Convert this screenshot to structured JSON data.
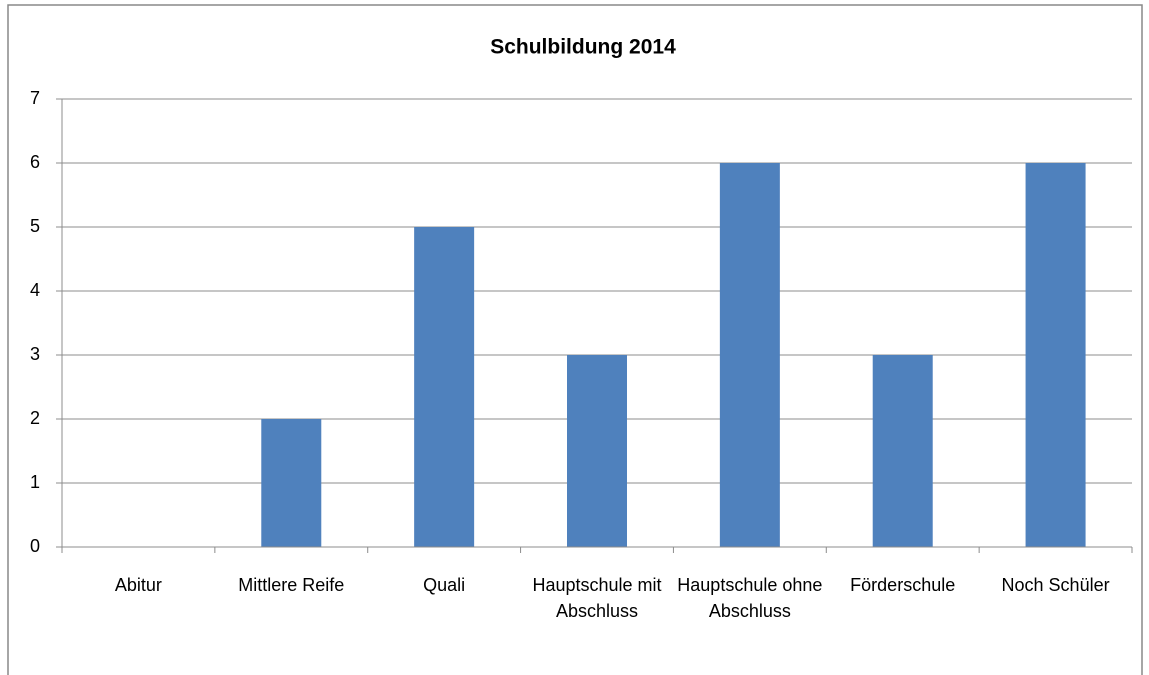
{
  "chart_data": {
    "type": "bar",
    "title": "Schulbildung 2014",
    "categories": [
      "Abitur",
      "Mittlere Reife",
      "Quali",
      "Hauptschule mit Abschluss",
      "Hauptschule ohne Abschluss",
      "Förderschule",
      "Noch Schüler"
    ],
    "values": [
      0,
      2,
      5,
      3,
      6,
      3,
      6
    ],
    "color": "#4f81bd",
    "ylim": [
      0,
      7
    ],
    "yticks": [
      0,
      1,
      2,
      3,
      4,
      5,
      6,
      7
    ],
    "grid": true
  }
}
